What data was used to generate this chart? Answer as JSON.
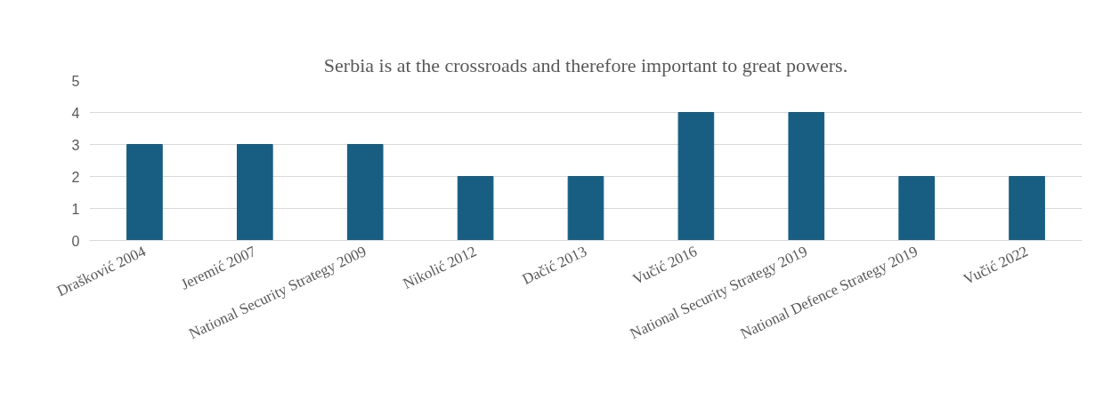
{
  "chart_data": {
    "type": "bar",
    "title": "Serbia is at the crossroads and therefore important to great powers.",
    "categories": [
      "Drašković 2004",
      "Jeremić 2007",
      "National Security Strategy 2009",
      "Nikolić 2012",
      "Dačić 2013",
      "Vučić 2016",
      "National Security Strategy 2019",
      "National Defence Strategy 2019",
      "Vučić 2022"
    ],
    "values": [
      3,
      3,
      3,
      2,
      2,
      4,
      4,
      2,
      2
    ],
    "color": "#175e82",
    "ylim": [
      0,
      5
    ],
    "yticks": [
      0,
      1,
      2,
      3,
      4,
      5
    ],
    "grid": "y"
  }
}
